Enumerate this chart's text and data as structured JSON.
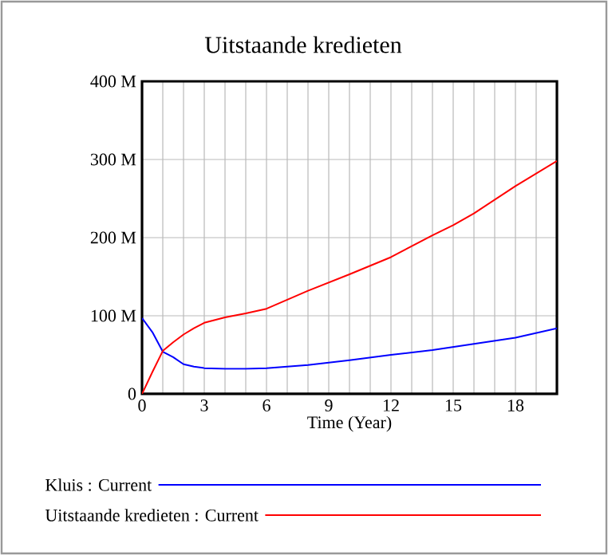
{
  "chart_data": {
    "type": "line",
    "title": "Uitstaande kredieten",
    "xlabel": "Time (Year)",
    "xlim": [
      0,
      20
    ],
    "ylim": [
      0,
      400
    ],
    "xticks": [
      0,
      {
        "value": 1,
        "label": null
      },
      {
        "value": 2,
        "label": null
      },
      3,
      {
        "value": 4,
        "label": null
      },
      {
        "value": 5,
        "label": null
      },
      6,
      {
        "value": 7,
        "label": null
      },
      {
        "value": 8,
        "label": null
      },
      9,
      {
        "value": 10,
        "label": null
      },
      {
        "value": 11,
        "label": null
      },
      12,
      {
        "value": 13,
        "label": null
      },
      {
        "value": 14,
        "label": null
      },
      15,
      {
        "value": 16,
        "label": null
      },
      {
        "value": 17,
        "label": null
      },
      18,
      {
        "value": 19,
        "label": null
      }
    ],
    "yticks": [
      0,
      {
        "value": 100,
        "label": "100 M"
      },
      {
        "value": 200,
        "label": "200 M"
      },
      {
        "value": 300,
        "label": "300 M"
      },
      {
        "value": 400,
        "label": "400 M"
      }
    ],
    "grid": true,
    "legend": "bottom",
    "marker": "none",
    "line_style": "solid",
    "x": [
      0,
      0.5,
      1,
      1.5,
      2,
      2.5,
      3,
      4,
      5,
      6,
      8,
      10,
      12,
      14,
      15,
      16,
      18,
      20
    ],
    "series": [
      {
        "name": "Kluis : Current",
        "color": "#0000ff",
        "values": [
          97,
          79,
          54,
          47,
          38,
          35,
          33,
          32,
          32,
          33,
          37,
          43,
          50,
          56,
          60,
          64,
          72,
          84
        ]
      },
      {
        "name": "Uitstaande kredieten : Current",
        "color": "#ff0000",
        "values": [
          0,
          28,
          55,
          66,
          76,
          84,
          91,
          98,
          103,
          109,
          132,
          153,
          175,
          203,
          216,
          231,
          266,
          298
        ]
      }
    ]
  }
}
